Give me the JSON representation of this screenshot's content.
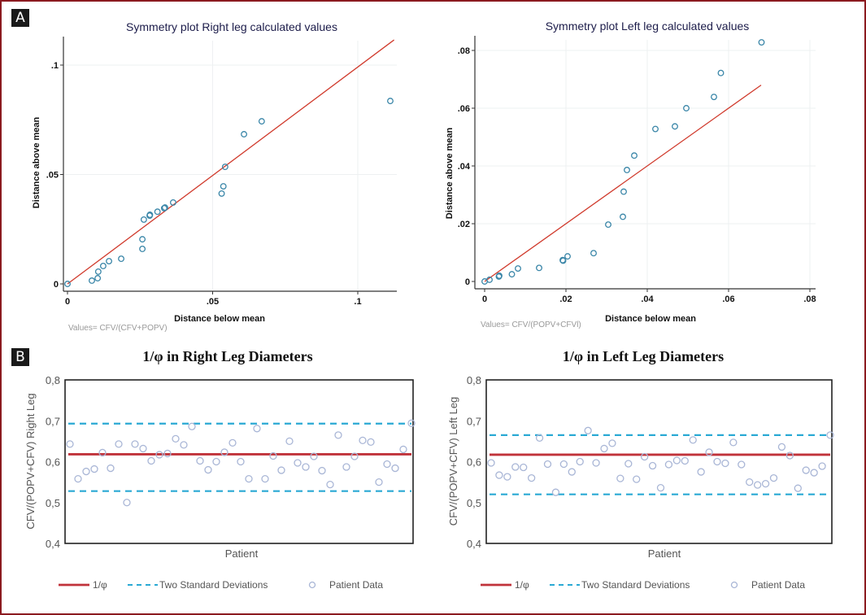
{
  "figure": {
    "panel_a_label": "A",
    "panel_b_label": "B"
  },
  "colors": {
    "frame": "#8b1a1f",
    "fit_line": "#d03a2c",
    "sym_point": "#3a86a8",
    "phi_line": "#c0323a",
    "sd_line": "#2aa9d4",
    "patient_point": "#a9b6d6"
  },
  "chart_data": [
    {
      "id": "sym-right",
      "type": "scatter",
      "title": "Symmetry plot Right leg calculated values",
      "xlabel": "Distance below mean",
      "ylabel": "Distance above mean",
      "note": "Values= CFV/(CFV+POPV)",
      "xlim": [
        0,
        0.113
      ],
      "ylim": [
        0,
        0.113
      ],
      "xticks": [
        0,
        0.05,
        0.1
      ],
      "xtick_labels": [
        "0",
        ".05",
        ".1"
      ],
      "yticks": [
        0,
        0.05,
        0.1
      ],
      "ytick_labels": [
        "0",
        ".05",
        ".1"
      ],
      "grid": true,
      "reference_line": {
        "x": [
          0,
          0.1125
        ],
        "y": [
          0,
          0.1115
        ]
      },
      "points": [
        [
          0.0,
          0.0
        ],
        [
          0.0084,
          0.0015
        ],
        [
          0.0104,
          0.0026
        ],
        [
          0.0106,
          0.0056
        ],
        [
          0.0123,
          0.0082
        ],
        [
          0.0143,
          0.0104
        ],
        [
          0.0185,
          0.0115
        ],
        [
          0.0258,
          0.016
        ],
        [
          0.0258,
          0.0204
        ],
        [
          0.0263,
          0.0294
        ],
        [
          0.0283,
          0.0312
        ],
        [
          0.0284,
          0.0316
        ],
        [
          0.031,
          0.033
        ],
        [
          0.0333,
          0.0346
        ],
        [
          0.0336,
          0.0349
        ],
        [
          0.0364,
          0.0372
        ],
        [
          0.0531,
          0.0413
        ],
        [
          0.0537,
          0.0446
        ],
        [
          0.0543,
          0.0535
        ],
        [
          0.0608,
          0.0684
        ],
        [
          0.0669,
          0.0743
        ],
        [
          0.1112,
          0.0836
        ]
      ]
    },
    {
      "id": "sym-left",
      "type": "scatter",
      "title": "Symmetry plot Left leg calculated values",
      "xlabel": "Distance below mean",
      "ylabel": "Distance above mean",
      "note": "Values= CFV/(POPV+CFVl)",
      "xlim": [
        0,
        0.081
      ],
      "ylim": [
        0,
        0.085
      ],
      "xticks": [
        0,
        0.02,
        0.04,
        0.06,
        0.08
      ],
      "xtick_labels": [
        "0",
        ".02",
        ".04",
        ".06",
        ".08"
      ],
      "yticks": [
        0,
        0.02,
        0.04,
        0.06,
        0.08
      ],
      "ytick_labels": [
        "0",
        ".02",
        ".04",
        ".06",
        ".08"
      ],
      "grid": true,
      "reference_line": {
        "x": [
          0,
          0.068
        ],
        "y": [
          0,
          0.068
        ]
      },
      "points": [
        [
          0.0,
          0.0
        ],
        [
          0.0012,
          0.0006
        ],
        [
          0.0035,
          0.0017
        ],
        [
          0.0036,
          0.002
        ],
        [
          0.0067,
          0.0025
        ],
        [
          0.0082,
          0.0045
        ],
        [
          0.0134,
          0.0047
        ],
        [
          0.0192,
          0.0074
        ],
        [
          0.0193,
          0.0072
        ],
        [
          0.0204,
          0.0087
        ],
        [
          0.0268,
          0.0098
        ],
        [
          0.0304,
          0.0197
        ],
        [
          0.034,
          0.0224
        ],
        [
          0.0342,
          0.0311
        ],
        [
          0.035,
          0.0386
        ],
        [
          0.0368,
          0.0436
        ],
        [
          0.042,
          0.0528
        ],
        [
          0.0468,
          0.0537
        ],
        [
          0.0496,
          0.06
        ],
        [
          0.0564,
          0.0639
        ],
        [
          0.0581,
          0.0722
        ],
        [
          0.0681,
          0.0828
        ]
      ]
    },
    {
      "id": "phi-right",
      "type": "scatter",
      "title": "1/φ in Right Leg Diameters",
      "xlabel": "Patient",
      "ylabel": "CFV/(POPV+CFV) Right Leg",
      "ylim": [
        0.4,
        0.8
      ],
      "yticks": [
        0.4,
        0.5,
        0.6,
        0.7,
        0.8
      ],
      "ytick_labels": [
        "0,4",
        "0,5",
        "0,6",
        "0,7",
        "0,8"
      ],
      "grid": false,
      "phi_line": 0.618,
      "sd_upper": 0.693,
      "sd_lower": 0.528,
      "legend": [
        "1/φ",
        "Two Standard Deviations",
        "Patient Data"
      ],
      "legend_position": "bottom",
      "values": [
        0.643,
        0.558,
        0.576,
        0.582,
        0.622,
        0.584,
        0.643,
        0.5,
        0.643,
        0.632,
        0.602,
        0.617,
        0.62,
        0.656,
        0.641,
        0.686,
        0.602,
        0.58,
        0.6,
        0.623,
        0.646,
        0.6,
        0.558,
        0.681,
        0.558,
        0.614,
        0.579,
        0.65,
        0.597,
        0.587,
        0.613,
        0.578,
        0.544,
        0.665,
        0.587,
        0.613,
        0.652,
        0.648,
        0.55,
        0.594,
        0.584,
        0.63,
        0.694
      ]
    },
    {
      "id": "phi-left",
      "type": "scatter",
      "title": "1/φ in Left Leg Diameters",
      "xlabel": "Patient",
      "ylabel": "CFV/(POPV+CFV) Left Leg",
      "ylim": [
        0.4,
        0.8
      ],
      "yticks": [
        0.4,
        0.5,
        0.6,
        0.7,
        0.8
      ],
      "ytick_labels": [
        "0,4",
        "0,5",
        "0,6",
        "0,7",
        "0,8"
      ],
      "grid": false,
      "phi_line": 0.617,
      "sd_upper": 0.665,
      "sd_lower": 0.52,
      "legend": [
        "1/φ",
        "Two Standard Deviations",
        "Patient Data"
      ],
      "legend_position": "bottom",
      "values": [
        0.597,
        0.567,
        0.563,
        0.587,
        0.586,
        0.56,
        0.658,
        0.594,
        0.525,
        0.594,
        0.575,
        0.6,
        0.676,
        0.597,
        0.632,
        0.645,
        0.559,
        0.595,
        0.557,
        0.612,
        0.59,
        0.536,
        0.593,
        0.603,
        0.602,
        0.653,
        0.575,
        0.623,
        0.6,
        0.596,
        0.647,
        0.593,
        0.55,
        0.543,
        0.546,
        0.56,
        0.636,
        0.615,
        0.535,
        0.579,
        0.573,
        0.589,
        0.665
      ]
    }
  ]
}
